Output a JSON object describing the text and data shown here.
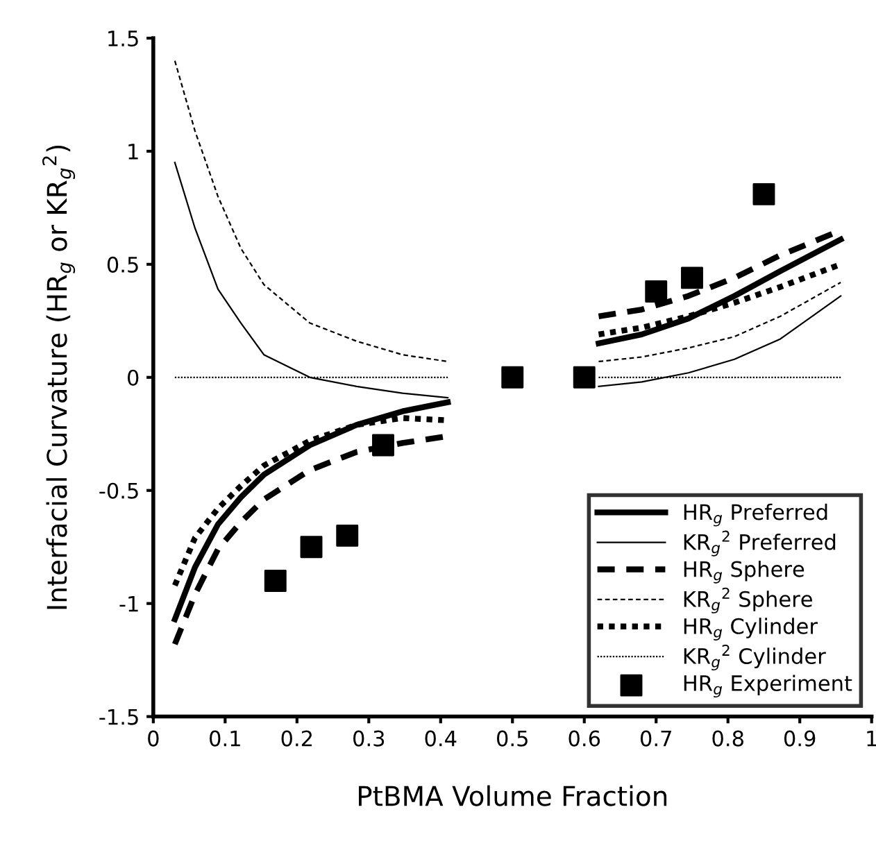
{
  "chart_data": {
    "type": "line",
    "xlabel": "PtBMA Volume Fraction",
    "ylabel": "Interfacial Curvature (HR$_{g}$ or KR$_{g}$$^{2}$)",
    "xlim": [
      0,
      1
    ],
    "ylim": [
      -1.5,
      1.5
    ],
    "xticks": [
      0,
      0.1,
      0.2,
      0.3,
      0.4,
      0.5,
      0.6,
      0.7,
      0.8,
      0.9,
      1
    ],
    "yticks": [
      -1.5,
      -1,
      -0.5,
      0,
      0.5,
      1,
      1.5
    ],
    "grid": false,
    "legend": "bottom right",
    "x": [
      0.03,
      0.058,
      0.09,
      0.122,
      0.154,
      0.218,
      0.283,
      0.347,
      0.41,
      0.5,
      0.62,
      0.68,
      0.745,
      0.809,
      0.873,
      0.957
    ],
    "series": [
      {
        "name": "HR$_{g}$ Preferred",
        "color": "#000000",
        "line_style": "solid",
        "values": [
          -1.07,
          -0.84,
          -0.65,
          -0.53,
          -0.43,
          -0.3,
          -0.21,
          -0.15,
          -0.11,
          null,
          0.15,
          0.19,
          0.26,
          0.36,
          0.47,
          0.61
        ]
      },
      {
        "name": "KR$_{g}$$^{2}$ Preferred",
        "color": "#000000",
        "line_style": "solid",
        "values": [
          0.95,
          0.66,
          0.39,
          0.24,
          0.1,
          0.0,
          -0.04,
          -0.07,
          -0.09,
          null,
          -0.04,
          -0.02,
          0.02,
          0.08,
          0.17,
          0.36
        ]
      },
      {
        "name": "HR$_{g}$ Sphere",
        "color": "#000000",
        "line_style": "dashed",
        "values": [
          -1.18,
          -0.96,
          -0.76,
          -0.64,
          -0.54,
          -0.41,
          -0.33,
          -0.29,
          -0.26,
          null,
          0.27,
          0.3,
          0.36,
          0.44,
          0.54,
          0.65
        ]
      },
      {
        "name": "KR$_{g}$$^{2}$ Sphere",
        "color": "#000000",
        "line_style": "dashed",
        "values": [
          1.4,
          1.09,
          0.8,
          0.57,
          0.41,
          0.24,
          0.16,
          0.1,
          0.07,
          null,
          0.07,
          0.09,
          0.13,
          0.18,
          0.27,
          0.42
        ]
      },
      {
        "name": "HR$_{g}$ Cylinder",
        "color": "#000000",
        "line_style": "dotted",
        "values": [
          -0.92,
          -0.71,
          -0.58,
          -0.48,
          -0.39,
          -0.28,
          -0.21,
          -0.18,
          -0.19,
          null,
          0.19,
          0.22,
          0.27,
          0.33,
          0.4,
          0.5
        ]
      },
      {
        "name": "KR$_{g}$$^{2}$ Cylinder",
        "color": "#000000",
        "line_style": "dotted",
        "values": [
          0,
          0,
          0,
          0,
          0,
          0,
          0,
          0,
          0,
          null,
          0,
          0,
          0,
          0,
          0,
          0
        ]
      },
      {
        "name": "HR$_{g}$ Experiment",
        "type": "scatter",
        "marker": "square",
        "color": "#000000",
        "x": [
          0.17,
          0.22,
          0.27,
          0.32,
          0.5,
          0.6,
          0.7,
          0.75,
          0.85
        ],
        "values": [
          -0.9,
          -0.75,
          -0.7,
          -0.3,
          0,
          0,
          0.38,
          0.44,
          0.81
        ]
      }
    ]
  }
}
